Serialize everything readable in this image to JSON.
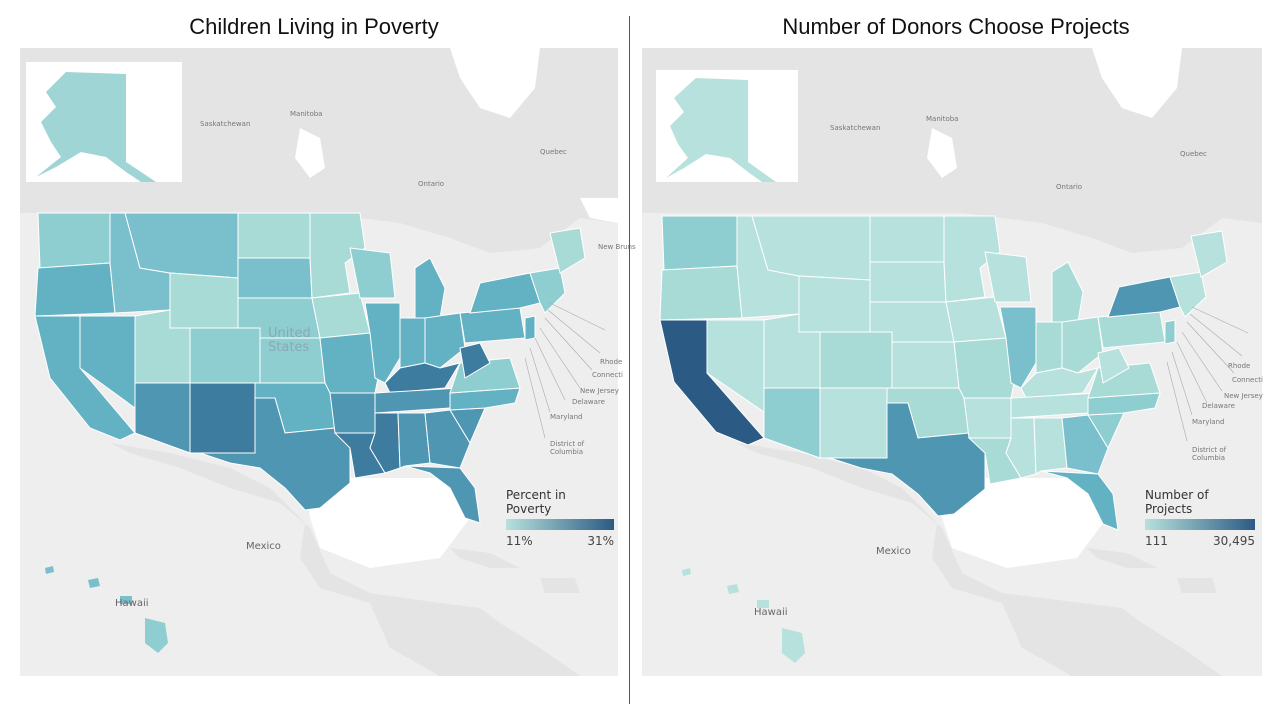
{
  "left_panel": {
    "title": "Children Living in Poverty",
    "legend": {
      "title": "Percent in Poverty",
      "min_label": "11%",
      "max_label": "31%",
      "color_low": "#b7e1dc",
      "color_high": "#2b5b84"
    }
  },
  "right_panel": {
    "title": "Number of Donors Choose Projects",
    "legend": {
      "title": "Number of Projects",
      "min_label": "111",
      "max_label": "30,495",
      "color_low": "#b7e1dc",
      "color_high": "#2b5b84"
    }
  },
  "map_labels": {
    "saskatchewan": "Saskatchewan",
    "manitoba": "Manitoba",
    "ontario": "Ontario",
    "quebec": "Quebec",
    "mexico": "Mexico",
    "hawaii": "Hawaii",
    "united_states": "United States",
    "new_jersey": "New Jersey",
    "delaware": "Delaware",
    "maryland": "Maryland",
    "connecticut": "Connecti",
    "rhode": "Rhode",
    "district": "District of Columbia",
    "new_brunswick": "New Bruns"
  },
  "chart_data": [
    {
      "type": "choropleth",
      "title": "Children Living in Poverty",
      "legend_title": "Percent in Poverty",
      "value_range": [
        "11%",
        "31%"
      ],
      "regions": [
        "Alaska",
        "Washington",
        "Oregon",
        "California",
        "Nevada",
        "Idaho",
        "Montana",
        "Wyoming",
        "Utah",
        "Arizona",
        "Colorado",
        "New Mexico",
        "North Dakota",
        "South Dakota",
        "Nebraska",
        "Kansas",
        "Oklahoma",
        "Texas",
        "Minnesota",
        "Iowa",
        "Missouri",
        "Arkansas",
        "Louisiana",
        "Wisconsin",
        "Illinois",
        "Michigan",
        "Indiana",
        "Ohio",
        "Kentucky",
        "Tennessee",
        "Mississippi",
        "Alabama",
        "Georgia",
        "Florida",
        "South Carolina",
        "North Carolina",
        "Virginia",
        "West Virginia",
        "Pennsylvania",
        "New York",
        "Maine",
        "Hawaii"
      ]
    },
    {
      "type": "choropleth",
      "title": "Number of Donors Choose Projects",
      "legend_title": "Number of Projects",
      "value_range": [
        "111",
        "30,495"
      ],
      "regions": [
        "Alaska",
        "Washington",
        "Oregon",
        "California",
        "Nevada",
        "Idaho",
        "Montana",
        "Wyoming",
        "Utah",
        "Arizona",
        "Colorado",
        "New Mexico",
        "North Dakota",
        "South Dakota",
        "Nebraska",
        "Kansas",
        "Oklahoma",
        "Texas",
        "Minnesota",
        "Iowa",
        "Missouri",
        "Arkansas",
        "Louisiana",
        "Wisconsin",
        "Illinois",
        "Michigan",
        "Indiana",
        "Ohio",
        "Kentucky",
        "Tennessee",
        "Mississippi",
        "Alabama",
        "Georgia",
        "Florida",
        "South Carolina",
        "North Carolina",
        "Virginia",
        "West Virginia",
        "Pennsylvania",
        "New York",
        "Maine",
        "Hawaii"
      ]
    }
  ]
}
